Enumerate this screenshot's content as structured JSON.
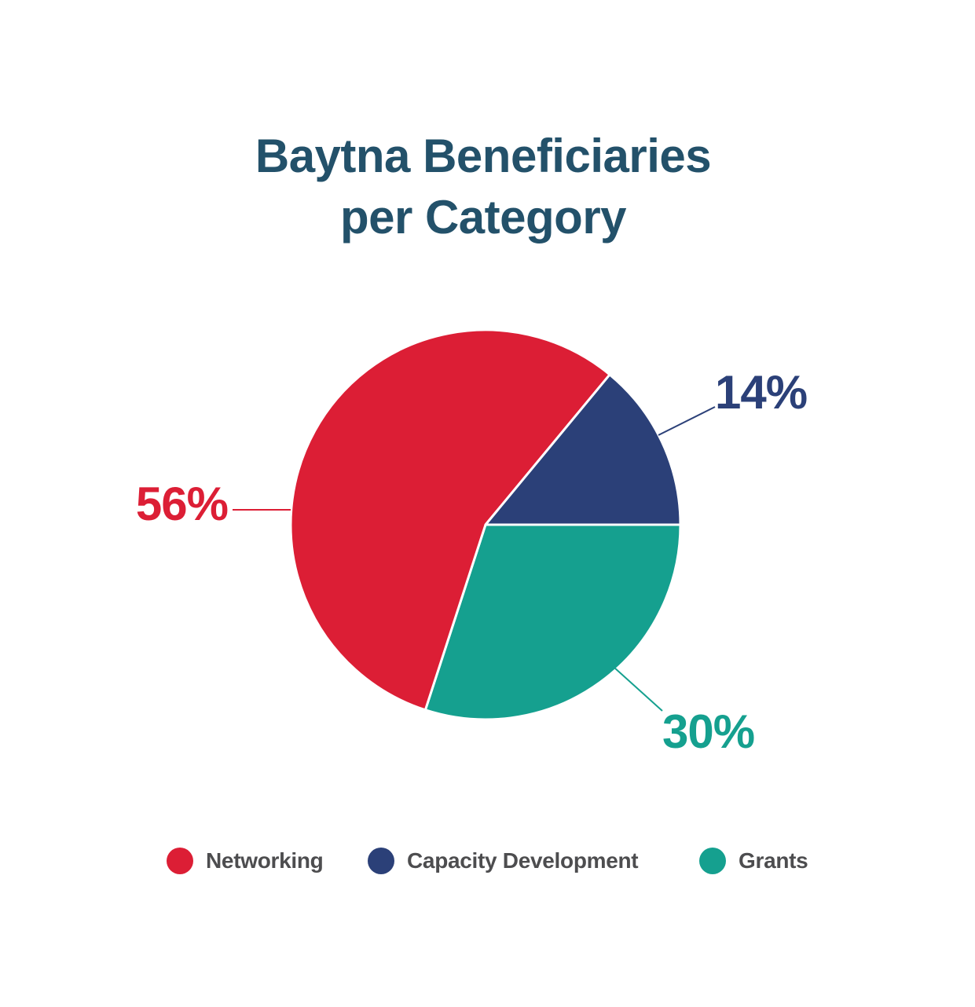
{
  "chart_data": {
    "type": "pie",
    "title": "Baytna Beneficiaries per Category",
    "title_lines": [
      "Baytna Beneficiaries",
      "per Category"
    ],
    "categories": [
      "Networking",
      "Capacity Development",
      "Grants"
    ],
    "values": [
      56,
      14,
      30
    ],
    "value_labels": [
      "56%",
      "14%",
      "30%"
    ],
    "colors": [
      "#dc1e35",
      "#2b4078",
      "#15a08f"
    ],
    "legend_position": "bottom"
  }
}
